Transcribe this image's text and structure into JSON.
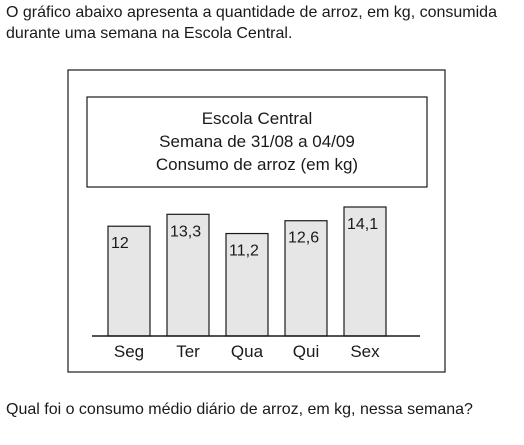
{
  "intro_text": "O gráfico abaixo apresenta a quantidade de arroz, em kg, consumida durante uma semana na Escola Central.",
  "question_text": "Qual foi o consumo médio diário de arroz, em kg, nessa semana?",
  "chart_data": {
    "type": "bar",
    "title_lines": [
      "Escola Central",
      "Semana de 31/08 a 04/09",
      "Consumo de arroz (em kg)"
    ],
    "categories": [
      "Seg",
      "Ter",
      "Qua",
      "Qui",
      "Sex"
    ],
    "values": [
      12,
      13.3,
      11.2,
      12.6,
      14.1
    ],
    "value_labels": [
      "12",
      "13,3",
      "11,2",
      "12,6",
      "14,1"
    ],
    "ylim": [
      0,
      14.1
    ],
    "grid": false,
    "legend": "none",
    "bar_color": "#e6e6e6",
    "stroke_color": "#1a1a1a"
  }
}
